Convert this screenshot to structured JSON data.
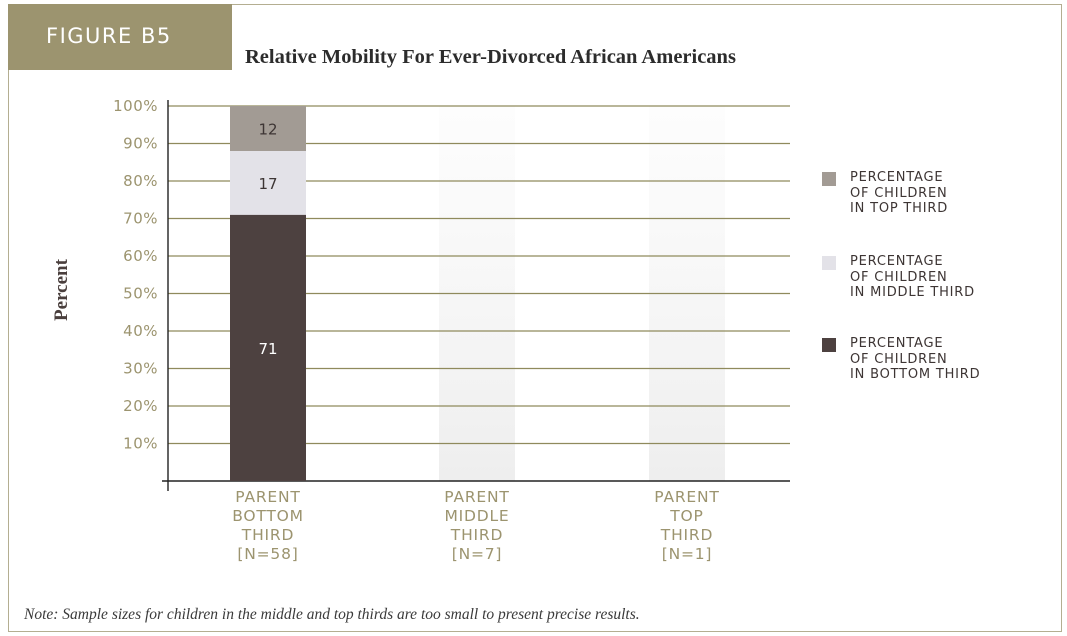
{
  "figure_label": "FIGURE B5",
  "note": "Note: Sample sizes for children in the middle and top thirds are too small to present precise results.",
  "colors": {
    "top_third": "#a29b94",
    "middle_third": "#e3e2e8",
    "bottom_third": "#4d4140",
    "accent": "#9c946f",
    "gridline": "#8f8a5c",
    "tick_label": "#9c946f"
  },
  "chart_data": {
    "type": "bar",
    "stacked": true,
    "title": "Relative Mobility For Ever-Divorced African Americans",
    "ylabel": "Percent",
    "xlabel": "",
    "ylim": [
      0,
      100
    ],
    "y_ticks": [
      "10%",
      "20%",
      "30%",
      "40%",
      "50%",
      "60%",
      "70%",
      "80%",
      "90%",
      "100%"
    ],
    "categories": [
      [
        "PARENT",
        "BOTTOM",
        "THIRD",
        "[N=58]"
      ],
      [
        "PARENT",
        "MIDDLE",
        "THIRD",
        "[N=7]"
      ],
      [
        "PARENT",
        "TOP",
        "THIRD",
        "[N=1]"
      ]
    ],
    "series": [
      {
        "name": "PERCENTAGE\nOF CHILDREN\nIN BOTTOM THIRD",
        "values": [
          71,
          null,
          null
        ],
        "color_key": "bottom_third"
      },
      {
        "name": "PERCENTAGE\nOF CHILDREN\nIN MIDDLE THIRD",
        "values": [
          17,
          null,
          null
        ],
        "color_key": "middle_third"
      },
      {
        "name": "PERCENTAGE\nOF CHILDREN\nIN TOP THIRD",
        "values": [
          12,
          null,
          null
        ],
        "color_key": "top_third"
      }
    ],
    "legend_order": [
      2,
      1,
      0
    ],
    "legend_position": "right",
    "grid": true
  }
}
